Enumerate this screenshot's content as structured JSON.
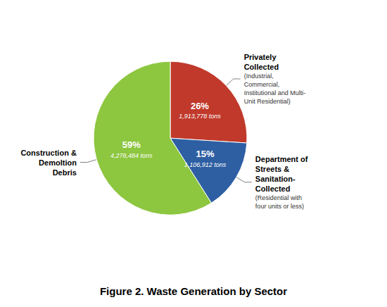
{
  "chart_data": {
    "type": "pie",
    "title": "Figure 2. Waste Generation by Sector",
    "categories": [
      "Privately\nCollected",
      "Department of\nStreets &\nSanitation-\nCollected",
      "Construction &\nDemoltion\nDebris"
    ],
    "values": [
      26,
      15,
      59
    ],
    "value_labels": [
      "26%",
      "15%",
      "59%"
    ],
    "data_labels": true,
    "tonnages": [
      "1,913,778 tons",
      "1,106,912 tons",
      "4,278,484 tons"
    ],
    "colors": [
      "#c0392b",
      "#2e5fa3",
      "#8dc63f"
    ],
    "annotations": [
      {
        "category": "Privately\nCollected",
        "text": "(Industrial,\nCommercial,\nInstitutional and Multi-\nUnit Residential)"
      },
      {
        "category": "Department of\nStreets &\nSanitation-\nCollected",
        "text": "(Residential with\nfour units or less)"
      }
    ]
  }
}
